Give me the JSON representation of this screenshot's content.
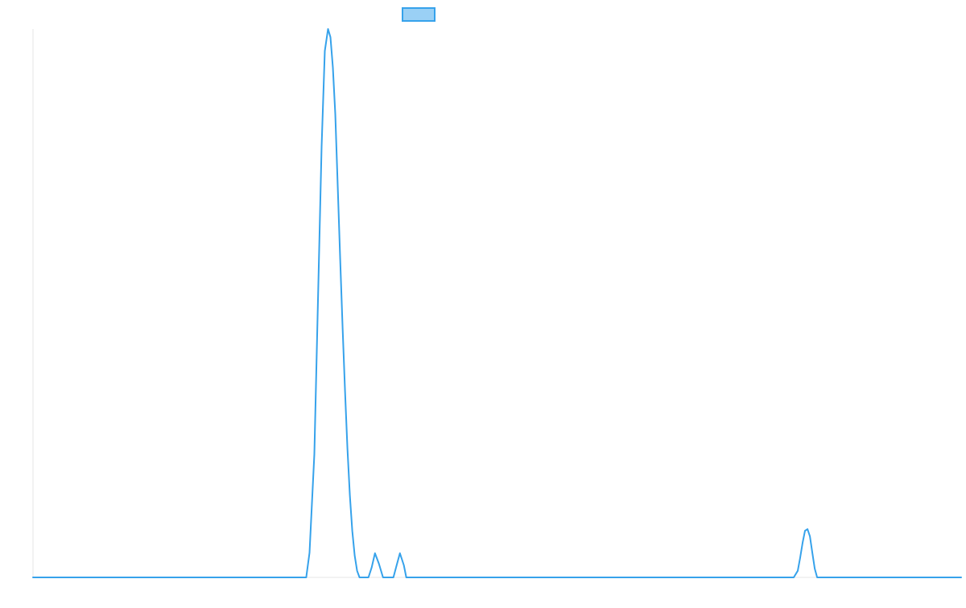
{
  "chart_data": {
    "type": "area",
    "title": "",
    "xlabel": "",
    "ylabel": "",
    "grid": false,
    "legend": {
      "placement": "top-center",
      "entries": [
        {
          "label": ""
        }
      ]
    },
    "xlim": [
      0,
      1
    ],
    "ylim": [
      0,
      1
    ],
    "series": [
      {
        "color": "#36a2eb",
        "fill": "#9ad0f5",
        "x": [
          0,
          0.2944,
          0.2979,
          0.3031,
          0.3109,
          0.3144,
          0.3179,
          0.3205,
          0.3231,
          0.3257,
          0.3283,
          0.331,
          0.3336,
          0.3362,
          0.3388,
          0.3414,
          0.344,
          0.3466,
          0.3492,
          0.3518,
          0.3536,
          0.3562,
          0.3588,
          0.3614,
          0.3649,
          0.3684,
          0.3727,
          0.3771,
          0.3814,
          0.3883,
          0.3918,
          0.3953,
          0.3996,
          0.4022,
          0.4049,
          0.4075,
          0.4101,
          0.4127,
          0.4153,
          0.4179,
          0.8196,
          0.8239,
          0.8265,
          0.8291,
          0.8317,
          0.8344,
          0.837,
          0.8396,
          0.8422,
          0.8448,
          0.8474,
          0.85,
          0.8526,
          0.8552,
          0.8578,
          0.8605,
          1
        ],
        "y": [
          0,
          0,
          0.045,
          0.225,
          0.785,
          0.96,
          1,
          0.985,
          0.93,
          0.845,
          0.715,
          0.58,
          0.455,
          0.34,
          0.235,
          0.15,
          0.085,
          0.04,
          0.012,
          0,
          0,
          0,
          0,
          0,
          0.018,
          0.044,
          0.025,
          0,
          0,
          0,
          0.022,
          0.044,
          0.022,
          0,
          0,
          0,
          0,
          0,
          0,
          0,
          0,
          0.012,
          0.036,
          0.063,
          0.085,
          0.088,
          0.075,
          0.045,
          0.016,
          0,
          0,
          0,
          0,
          0,
          0,
          0,
          0
        ]
      }
    ]
  }
}
